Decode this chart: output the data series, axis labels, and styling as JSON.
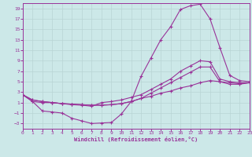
{
  "bg_color": "#cce8e8",
  "grid_color": "#b8d4d4",
  "line_color": "#993399",
  "xlabel": "Windchill (Refroidissement éolien,°C)",
  "xlim": [
    0,
    23
  ],
  "ylim": [
    -4,
    20
  ],
  "xticks": [
    0,
    1,
    2,
    3,
    4,
    5,
    6,
    7,
    8,
    9,
    10,
    11,
    12,
    13,
    14,
    15,
    16,
    17,
    18,
    19,
    20,
    21,
    22,
    23
  ],
  "yticks": [
    -3,
    -1,
    1,
    3,
    5,
    7,
    9,
    11,
    13,
    15,
    17,
    19
  ],
  "curve_peak_x": [
    0,
    1,
    2,
    3,
    4,
    5,
    6,
    7,
    8,
    9,
    10,
    11,
    12,
    13,
    14,
    15,
    16,
    17,
    18,
    19,
    20,
    21,
    22,
    23
  ],
  "curve_peak_y": [
    2.5,
    1.2,
    -0.6,
    -0.8,
    -1.0,
    -2.0,
    -2.5,
    -3.0,
    -2.9,
    -2.8,
    -1.2,
    1.2,
    6.0,
    9.5,
    13.0,
    15.5,
    18.8,
    19.5,
    19.8,
    17.0,
    11.5,
    6.2,
    5.2,
    5.0
  ],
  "curve_mid_x": [
    0,
    1,
    2,
    3,
    4,
    5,
    6,
    7,
    8,
    9,
    10,
    11,
    12,
    13,
    14,
    15,
    16,
    17,
    18,
    19,
    20,
    21,
    22,
    23
  ],
  "curve_mid_y": [
    2.5,
    1.2,
    1.0,
    1.0,
    0.8,
    0.6,
    0.5,
    0.3,
    1.0,
    1.2,
    1.5,
    2.0,
    2.5,
    3.5,
    4.5,
    5.5,
    7.0,
    8.0,
    9.0,
    8.8,
    5.5,
    5.0,
    4.8,
    4.8
  ],
  "curve_low1_x": [
    0,
    1,
    2,
    3,
    4,
    5,
    6,
    7,
    8,
    9,
    10,
    11,
    12,
    13,
    14,
    15,
    16,
    17,
    18,
    19,
    20,
    21,
    22,
    23
  ],
  "curve_low1_y": [
    2.5,
    1.5,
    1.2,
    1.0,
    0.8,
    0.7,
    0.6,
    0.5,
    0.5,
    0.6,
    0.8,
    1.2,
    1.8,
    2.2,
    2.8,
    3.2,
    3.8,
    4.2,
    4.8,
    5.2,
    5.0,
    4.5,
    4.5,
    4.8
  ],
  "curve_low2_x": [
    0,
    1,
    2,
    3,
    4,
    5,
    6,
    7,
    8,
    9,
    10,
    11,
    12,
    13,
    14,
    15,
    16,
    17,
    18,
    19,
    20,
    21,
    22,
    23
  ],
  "curve_low2_y": [
    2.5,
    1.5,
    1.2,
    1.0,
    0.8,
    0.7,
    0.6,
    0.5,
    0.5,
    0.6,
    0.8,
    1.2,
    1.8,
    2.8,
    3.8,
    4.8,
    5.8,
    6.8,
    7.8,
    7.8,
    5.0,
    4.8,
    4.6,
    4.8
  ]
}
